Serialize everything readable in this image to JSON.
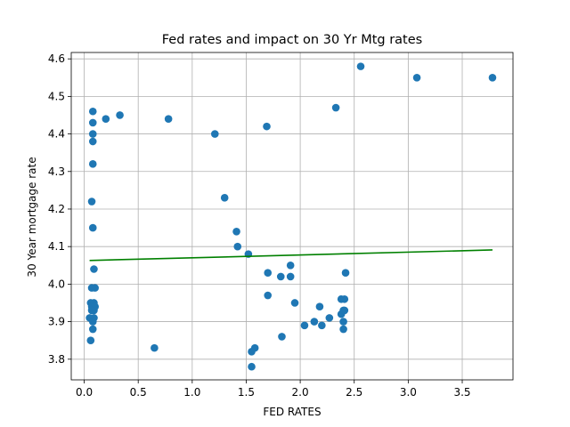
{
  "chart_data": {
    "type": "scatter",
    "title": "Fed rates and impact on 30 Yr Mtg rates",
    "xlabel": "FED RATES",
    "ylabel": "30 Year mortgage rate",
    "xlim": [
      -0.12,
      3.97
    ],
    "ylim": [
      3.745,
      4.617
    ],
    "xticks": [
      0.0,
      0.5,
      1.0,
      1.5,
      2.0,
      2.5,
      3.0,
      3.5
    ],
    "yticks": [
      3.8,
      3.9,
      4.0,
      4.1,
      4.2,
      4.3,
      4.4,
      4.5,
      4.6
    ],
    "xtick_labels": [
      "0.0",
      "0.5",
      "1.0",
      "1.5",
      "2.0",
      "2.5",
      "3.0",
      "3.5"
    ],
    "ytick_labels": [
      "3.8",
      "3.9",
      "4.0",
      "4.1",
      "4.2",
      "4.3",
      "4.4",
      "4.5",
      "4.6"
    ],
    "grid": true,
    "series": [
      {
        "kind": "points",
        "color": "#1f77b4",
        "x": [
          0.08,
          0.08,
          0.08,
          0.08,
          0.08,
          0.07,
          0.08,
          0.09,
          0.1,
          0.07,
          0.09,
          0.06,
          0.07,
          0.08,
          0.09,
          0.1,
          0.07,
          0.09,
          0.05,
          0.08,
          0.06,
          0.08,
          0.2,
          0.33,
          0.65,
          0.78,
          1.21,
          1.3,
          1.41,
          1.42,
          1.52,
          1.55,
          1.55,
          1.58,
          1.69,
          1.7,
          1.7,
          1.82,
          1.83,
          1.91,
          1.91,
          1.95,
          2.04,
          2.13,
          2.18,
          2.2,
          2.27,
          2.33,
          2.38,
          2.38,
          2.4,
          2.41,
          2.4,
          2.4,
          2.41,
          2.42,
          2.56,
          3.08,
          3.78
        ],
        "y": [
          4.46,
          4.43,
          4.4,
          4.38,
          4.32,
          4.22,
          4.15,
          4.04,
          3.99,
          3.99,
          3.95,
          3.95,
          3.94,
          3.94,
          3.93,
          3.94,
          3.93,
          3.91,
          3.91,
          3.9,
          3.85,
          3.88,
          4.44,
          4.45,
          3.83,
          4.44,
          4.4,
          4.23,
          4.14,
          4.1,
          4.08,
          3.82,
          3.78,
          3.83,
          4.42,
          4.03,
          3.97,
          4.02,
          3.86,
          4.05,
          4.02,
          3.95,
          3.89,
          3.9,
          3.94,
          3.89,
          3.91,
          4.47,
          3.92,
          3.96,
          3.93,
          3.96,
          3.9,
          3.88,
          3.93,
          4.03,
          4.58,
          4.55,
          4.55
        ]
      },
      {
        "kind": "line",
        "color": "#008000",
        "x": [
          0.05,
          3.78
        ],
        "y": [
          4.063,
          4.091
        ]
      }
    ]
  }
}
